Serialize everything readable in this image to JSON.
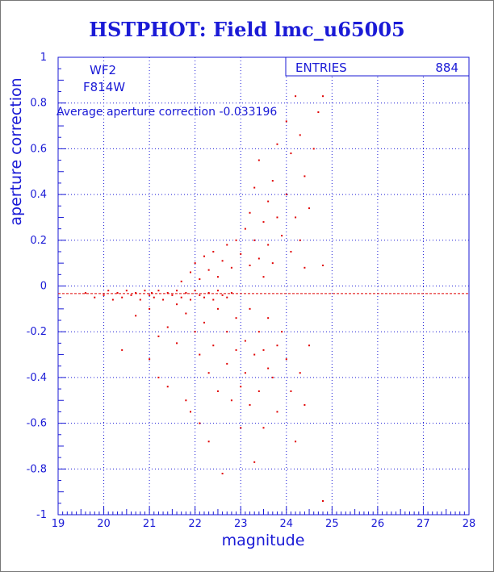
{
  "chart_data": {
    "type": "scatter",
    "title": "HSTPHOT: Field lmc_u65005",
    "xlabel": "magnitude",
    "ylabel": "aperture correction",
    "xlim": [
      19,
      28
    ],
    "ylim": [
      -1,
      1
    ],
    "x_ticks": [
      19,
      20,
      21,
      22,
      23,
      24,
      25,
      26,
      27,
      28
    ],
    "y_ticks": [
      -1,
      -0.8,
      -0.6,
      -0.4,
      -0.2,
      0,
      0.2,
      0.4,
      0.6,
      0.8,
      1
    ],
    "grid": "dotted",
    "chip": "WF2",
    "filter": "F814W",
    "average_label": "Average aperture correction",
    "average_value": -0.033196,
    "average_text": "-0.033196",
    "stats": {
      "label": "ENTRIES",
      "value": "884"
    },
    "point_color": "#e00000",
    "axis_color": "#1a1ad6",
    "points": [
      [
        19.6,
        -0.03
      ],
      [
        19.8,
        -0.05
      ],
      [
        20.0,
        -0.04
      ],
      [
        20.1,
        -0.02
      ],
      [
        20.2,
        -0.06
      ],
      [
        20.3,
        -0.03
      ],
      [
        20.4,
        -0.05
      ],
      [
        20.5,
        -0.02
      ],
      [
        20.6,
        -0.04
      ],
      [
        20.7,
        -0.03
      ],
      [
        20.8,
        -0.06
      ],
      [
        20.9,
        -0.02
      ],
      [
        21.0,
        -0.04
      ],
      [
        21.05,
        -0.03
      ],
      [
        21.1,
        -0.05
      ],
      [
        21.2,
        -0.02
      ],
      [
        21.3,
        -0.06
      ],
      [
        21.4,
        -0.03
      ],
      [
        21.5,
        -0.04
      ],
      [
        21.6,
        -0.02
      ],
      [
        21.7,
        -0.05
      ],
      [
        21.8,
        -0.03
      ],
      [
        21.9,
        -0.06
      ],
      [
        22.0,
        -0.02
      ],
      [
        22.1,
        -0.04
      ],
      [
        22.2,
        -0.05
      ],
      [
        22.3,
        -0.03
      ],
      [
        22.4,
        -0.06
      ],
      [
        22.5,
        -0.02
      ],
      [
        22.6,
        -0.04
      ],
      [
        22.7,
        -0.05
      ],
      [
        22.8,
        -0.03
      ],
      [
        20.4,
        -0.28
      ],
      [
        20.7,
        -0.13
      ],
      [
        21.0,
        -0.32
      ],
      [
        21.0,
        -0.1
      ],
      [
        21.2,
        -0.22
      ],
      [
        21.2,
        -0.4
      ],
      [
        21.4,
        -0.18
      ],
      [
        21.4,
        -0.44
      ],
      [
        21.6,
        -0.25
      ],
      [
        21.6,
        -0.08
      ],
      [
        21.8,
        -0.5
      ],
      [
        21.8,
        -0.12
      ],
      [
        21.9,
        -0.55
      ],
      [
        22.0,
        -0.2
      ],
      [
        22.1,
        -0.3
      ],
      [
        22.1,
        -0.6
      ],
      [
        22.2,
        -0.16
      ],
      [
        22.3,
        -0.38
      ],
      [
        22.3,
        -0.68
      ],
      [
        22.4,
        -0.26
      ],
      [
        22.5,
        -0.46
      ],
      [
        22.5,
        -0.1
      ],
      [
        22.6,
        -0.82
      ],
      [
        22.7,
        -0.2
      ],
      [
        22.7,
        -0.34
      ],
      [
        22.8,
        -0.5
      ],
      [
        22.9,
        -0.14
      ],
      [
        22.9,
        -0.28
      ],
      [
        23.0,
        -0.44
      ],
      [
        23.0,
        -0.62
      ],
      [
        23.1,
        -0.24
      ],
      [
        23.1,
        -0.38
      ],
      [
        23.2,
        -0.52
      ],
      [
        23.2,
        -0.1
      ],
      [
        23.3,
        -0.3
      ],
      [
        23.3,
        -0.77
      ],
      [
        23.4,
        -0.2
      ],
      [
        23.4,
        -0.46
      ],
      [
        23.5,
        -0.62
      ],
      [
        23.5,
        -0.28
      ],
      [
        23.6,
        -0.36
      ],
      [
        23.6,
        -0.14
      ],
      [
        23.7,
        -0.4
      ],
      [
        23.8,
        -0.26
      ],
      [
        23.8,
        -0.55
      ],
      [
        23.9,
        -0.2
      ],
      [
        24.0,
        -0.32
      ],
      [
        24.1,
        -0.46
      ],
      [
        24.2,
        -0.68
      ],
      [
        24.3,
        -0.38
      ],
      [
        24.4,
        -0.52
      ],
      [
        24.5,
        -0.26
      ],
      [
        24.8,
        -0.94
      ],
      [
        21.7,
        0.02
      ],
      [
        21.9,
        0.06
      ],
      [
        22.0,
        0.1
      ],
      [
        22.1,
        0.03
      ],
      [
        22.2,
        0.13
      ],
      [
        22.3,
        0.07
      ],
      [
        22.4,
        0.15
      ],
      [
        22.5,
        0.04
      ],
      [
        22.6,
        0.11
      ],
      [
        22.7,
        0.18
      ],
      [
        22.8,
        0.08
      ],
      [
        22.9,
        0.2
      ],
      [
        23.0,
        0.14
      ],
      [
        23.1,
        0.25
      ],
      [
        23.2,
        0.09
      ],
      [
        23.2,
        0.32
      ],
      [
        23.3,
        0.2
      ],
      [
        23.3,
        0.43
      ],
      [
        23.4,
        0.12
      ],
      [
        23.4,
        0.55
      ],
      [
        23.5,
        0.28
      ],
      [
        23.5,
        0.04
      ],
      [
        23.6,
        0.37
      ],
      [
        23.6,
        0.18
      ],
      [
        23.7,
        0.46
      ],
      [
        23.7,
        0.1
      ],
      [
        23.8,
        0.62
      ],
      [
        23.8,
        0.3
      ],
      [
        23.9,
        0.22
      ],
      [
        24.0,
        0.4
      ],
      [
        24.0,
        0.72
      ],
      [
        24.1,
        0.15
      ],
      [
        24.1,
        0.58
      ],
      [
        24.2,
        0.83
      ],
      [
        24.2,
        0.3
      ],
      [
        24.3,
        0.66
      ],
      [
        24.3,
        0.2
      ],
      [
        24.4,
        0.48
      ],
      [
        24.4,
        0.08
      ],
      [
        24.5,
        0.34
      ],
      [
        24.6,
        0.6
      ],
      [
        24.7,
        0.76
      ],
      [
        24.8,
        0.83
      ],
      [
        24.8,
        0.09
      ]
    ]
  }
}
